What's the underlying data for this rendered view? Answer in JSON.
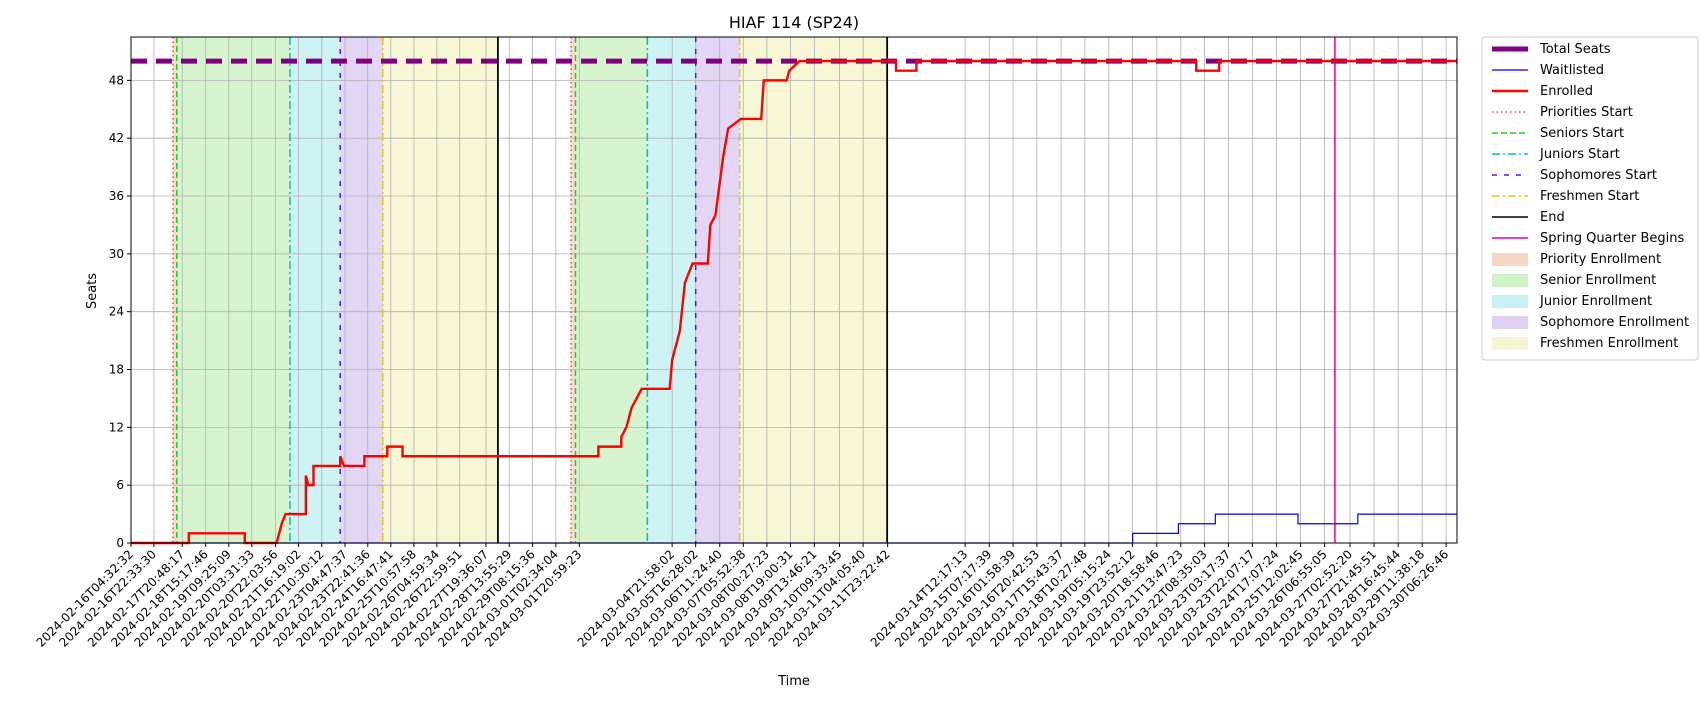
{
  "chart_data": {
    "type": "line",
    "title": "HIAF 114 (SP24)",
    "xlabel": "Time",
    "ylabel": "Seats",
    "ylim": [
      0,
      52.5
    ],
    "yticks": [
      0,
      6,
      12,
      18,
      24,
      30,
      36,
      42,
      48
    ],
    "x_axis": {
      "kind": "datetime",
      "range": [
        "2024-02-16T04:32:32",
        "2024-03-30T15:00:00"
      ],
      "tick_labels": [
        "2024-02-16T04:32:32",
        "2024-02-16T22:33:30",
        "2024-02-17T20:48:17",
        "2024-02-18T15:17:46",
        "2024-02-19T09:25:09",
        "2024-02-20T03:31:33",
        "2024-02-20T22:03:56",
        "2024-02-21T16:19:02",
        "2024-02-22T10:30:12",
        "2024-02-23T04:47:37",
        "2024-02-23T22:41:36",
        "2024-02-24T16:47:41",
        "2024-02-25T10:57:58",
        "2024-02-26T04:59:34",
        "2024-02-26T22:59:51",
        "2024-02-27T19:36:07",
        "2024-02-28T13:55:29",
        "2024-02-29T08:15:36",
        "2024-03-01T02:34:04",
        "2024-03-01T20:59:23",
        "2024-03-04T21:58:02",
        "2024-03-05T16:28:02",
        "2024-03-06T11:24:40",
        "2024-03-07T05:52:38",
        "2024-03-08T00:27:23",
        "2024-03-08T19:00:31",
        "2024-03-09T13:46:21",
        "2024-03-10T09:33:45",
        "2024-03-11T04:05:40",
        "2024-03-11T23:22:42",
        "2024-03-14T12:17:13",
        "2024-03-15T07:17:39",
        "2024-03-16T01:58:39",
        "2024-03-16T20:42:53",
        "2024-03-17T15:43:37",
        "2024-03-18T10:27:48",
        "2024-03-19T05:15:24",
        "2024-03-19T23:52:12",
        "2024-03-20T18:58:46",
        "2024-03-21T13:47:23",
        "2024-03-22T08:35:03",
        "2024-03-23T03:17:37",
        "2024-03-23T22:07:17",
        "2024-03-24T17:07:24",
        "2024-03-25T12:02:45",
        "2024-03-26T06:55:05",
        "2024-03-27T02:52:20",
        "2024-03-27T21:45:51",
        "2024-03-28T16:45:44",
        "2024-03-29T11:38:18",
        "2024-03-30T06:26:46"
      ]
    },
    "grid": true,
    "legend_position": "outside-top-right",
    "series": [
      {
        "name": "Total Seats",
        "color": "#800080",
        "style": "dashed-thick",
        "points": [
          [
            "2024-02-16T04:32:32",
            50
          ],
          [
            "2024-03-30T15:00:00",
            50
          ]
        ]
      },
      {
        "name": "Waitlisted",
        "color": "#0000ff",
        "style": "solid-thin",
        "points": [
          [
            "2024-02-16T04:32:32",
            0
          ],
          [
            "2024-03-20T00:00:00",
            0
          ],
          [
            "2024-03-20T00:00:00",
            1
          ],
          [
            "2024-03-21T12:00:00",
            1
          ],
          [
            "2024-03-21T12:00:00",
            2
          ],
          [
            "2024-03-22T17:00:00",
            2
          ],
          [
            "2024-03-22T17:00:00",
            3
          ],
          [
            "2024-03-25T10:00:00",
            3
          ],
          [
            "2024-03-25T10:00:00",
            2
          ],
          [
            "2024-03-27T09:00:00",
            2
          ],
          [
            "2024-03-27T09:00:00",
            3
          ],
          [
            "2024-03-30T15:00:00",
            3
          ]
        ]
      },
      {
        "name": "Enrolled",
        "color": "#ff0000",
        "style": "solid-thick",
        "points": [
          [
            "2024-02-16T04:32:32",
            0
          ],
          [
            "2024-02-18T02:00:00",
            0
          ],
          [
            "2024-02-18T02:00:00",
            1
          ],
          [
            "2024-02-19T22:00:00",
            1
          ],
          [
            "2024-02-19T22:00:00",
            0
          ],
          [
            "2024-02-20T23:00:00",
            0
          ],
          [
            "2024-02-21T03:00:00",
            2
          ],
          [
            "2024-02-21T06:00:00",
            3
          ],
          [
            "2024-02-21T22:00:00",
            3
          ],
          [
            "2024-02-21T22:00:00",
            7
          ],
          [
            "2024-02-22T00:00:00",
            6
          ],
          [
            "2024-02-22T04:00:00",
            6
          ],
          [
            "2024-02-22T04:00:00",
            8
          ],
          [
            "2024-02-23T01:00:00",
            8
          ],
          [
            "2024-02-23T01:00:00",
            9
          ],
          [
            "2024-02-23T04:00:00",
            8
          ],
          [
            "2024-02-23T20:00:00",
            8
          ],
          [
            "2024-02-23T20:00:00",
            9
          ],
          [
            "2024-02-24T14:00:00",
            9
          ],
          [
            "2024-02-24T14:00:00",
            10
          ],
          [
            "2024-02-25T02:00:00",
            10
          ],
          [
            "2024-02-25T02:00:00",
            9
          ],
          [
            "2024-03-02T12:00:00",
            9
          ],
          [
            "2024-03-02T12:00:00",
            10
          ],
          [
            "2024-03-03T06:00:00",
            10
          ],
          [
            "2024-03-03T06:00:00",
            11
          ],
          [
            "2024-03-03T10:00:00",
            12
          ],
          [
            "2024-03-03T14:00:00",
            14
          ],
          [
            "2024-03-03T22:00:00",
            16
          ],
          [
            "2024-03-04T20:00:00",
            16
          ],
          [
            "2024-03-04T22:00:00",
            19
          ],
          [
            "2024-03-05T04:00:00",
            22
          ],
          [
            "2024-03-05T08:00:00",
            27
          ],
          [
            "2024-03-05T14:00:00",
            29
          ],
          [
            "2024-03-06T02:00:00",
            29
          ],
          [
            "2024-03-06T04:00:00",
            33
          ],
          [
            "2024-03-06T08:00:00",
            34
          ],
          [
            "2024-03-06T14:00:00",
            40
          ],
          [
            "2024-03-06T18:00:00",
            43
          ],
          [
            "2024-03-07T04:00:00",
            44
          ],
          [
            "2024-03-07T20:00:00",
            44
          ],
          [
            "2024-03-07T22:00:00",
            48
          ],
          [
            "2024-03-08T16:00:00",
            48
          ],
          [
            "2024-03-08T18:00:00",
            49
          ],
          [
            "2024-03-09T02:00:00",
            50
          ],
          [
            "2024-03-12T06:00:00",
            50
          ],
          [
            "2024-03-12T06:00:00",
            49
          ],
          [
            "2024-03-12T22:00:00",
            49
          ],
          [
            "2024-03-12T22:00:00",
            50
          ],
          [
            "2024-03-22T02:00:00",
            50
          ],
          [
            "2024-03-22T02:00:00",
            49
          ],
          [
            "2024-03-22T20:00:00",
            49
          ],
          [
            "2024-03-22T20:00:00",
            50
          ],
          [
            "2024-03-30T15:00:00",
            50
          ]
        ]
      }
    ],
    "vertical_lines": [
      {
        "name": "Priorities Start",
        "color": "#ff4040",
        "style": "dotted",
        "rounds": [
          "2024-02-17T13:30:00",
          "2024-03-01T14:30:00"
        ]
      },
      {
        "name": "Seniors Start",
        "color": "#22cc22",
        "style": "dashed",
        "rounds": [
          "2024-02-17T16:30:00",
          "2024-03-01T18:00:00"
        ]
      },
      {
        "name": "Juniors Start",
        "color": "#00bfbf",
        "style": "dashdot",
        "rounds": [
          "2024-02-21T09:30:00",
          "2024-03-04T02:30:00"
        ]
      },
      {
        "name": "Sophomores Start",
        "color": "#6a0dd6",
        "style": "loosedash",
        "rounds": [
          "2024-02-23T01:00:00",
          "2024-03-05T16:30:00"
        ]
      },
      {
        "name": "Freshmen Start",
        "color": "#e6c619",
        "style": "dashdot",
        "rounds": [
          "2024-02-24T10:30:00",
          "2024-03-07T03:00:00"
        ]
      },
      {
        "name": "End",
        "color": "#000000",
        "style": "solid",
        "rounds": [
          "2024-02-28T05:00:00",
          "2024-03-11T23:00:00"
        ]
      },
      {
        "name": "Spring Quarter Begins",
        "color": "#e6009e",
        "style": "solid",
        "rounds": [
          "2024-03-26T15:00:00"
        ]
      }
    ],
    "shaded_periods": [
      {
        "name": "Priority Enrollment",
        "color": "#f4d0bb",
        "rounds": [
          [
            "2024-02-17T13:30:00",
            "2024-02-17T16:30:00"
          ],
          [
            "2024-03-01T14:30:00",
            "2024-03-01T18:00:00"
          ]
        ]
      },
      {
        "name": "Senior Enrollment",
        "color": "#c8f0bd",
        "rounds": [
          [
            "2024-02-17T16:30:00",
            "2024-02-21T09:30:00"
          ],
          [
            "2024-03-01T18:00:00",
            "2024-03-04T02:30:00"
          ]
        ]
      },
      {
        "name": "Junior Enrollment",
        "color": "#bdeff0",
        "rounds": [
          [
            "2024-02-21T09:30:00",
            "2024-02-23T01:00:00"
          ],
          [
            "2024-03-04T02:30:00",
            "2024-03-05T16:30:00"
          ]
        ]
      },
      {
        "name": "Sophomore Enrollment",
        "color": "#d9c8f2",
        "rounds": [
          [
            "2024-02-23T01:00:00",
            "2024-02-24T10:30:00"
          ],
          [
            "2024-03-05T16:30:00",
            "2024-03-07T03:00:00"
          ]
        ]
      },
      {
        "name": "Freshmen Enrollment",
        "color": "#f4f4c8",
        "rounds": [
          [
            "2024-02-24T10:30:00",
            "2024-02-28T05:00:00"
          ],
          [
            "2024-03-07T03:00:00",
            "2024-03-11T23:00:00"
          ]
        ]
      }
    ],
    "legend": [
      {
        "label": "Total Seats",
        "kind": "line",
        "color": "#800080",
        "style": "thickdash"
      },
      {
        "label": "Waitlisted",
        "kind": "line",
        "color": "#0000ff",
        "style": "thin"
      },
      {
        "label": "Enrolled",
        "kind": "line",
        "color": "#ff0000",
        "style": "thick"
      },
      {
        "label": "Priorities Start",
        "kind": "line",
        "color": "#ff4040",
        "style": "dotted"
      },
      {
        "label": "Seniors Start",
        "kind": "line",
        "color": "#22cc22",
        "style": "dashed"
      },
      {
        "label": "Juniors Start",
        "kind": "line",
        "color": "#00bfbf",
        "style": "dashdot"
      },
      {
        "label": "Sophomores Start",
        "kind": "line",
        "color": "#6a0dd6",
        "style": "loosedash"
      },
      {
        "label": "Freshmen Start",
        "kind": "line",
        "color": "#e6c619",
        "style": "dashdot"
      },
      {
        "label": "End",
        "kind": "line",
        "color": "#000000",
        "style": "solid"
      },
      {
        "label": "Spring Quarter Begins",
        "kind": "line",
        "color": "#e6009e",
        "style": "solid"
      },
      {
        "label": "Priority Enrollment",
        "kind": "patch",
        "color": "#f4d0bb"
      },
      {
        "label": "Senior Enrollment",
        "kind": "patch",
        "color": "#c8f0bd"
      },
      {
        "label": "Junior Enrollment",
        "kind": "patch",
        "color": "#bdeff0"
      },
      {
        "label": "Sophomore Enrollment",
        "kind": "patch",
        "color": "#d9c8f2"
      },
      {
        "label": "Freshmen Enrollment",
        "kind": "patch",
        "color": "#f4f4c8"
      }
    ]
  }
}
